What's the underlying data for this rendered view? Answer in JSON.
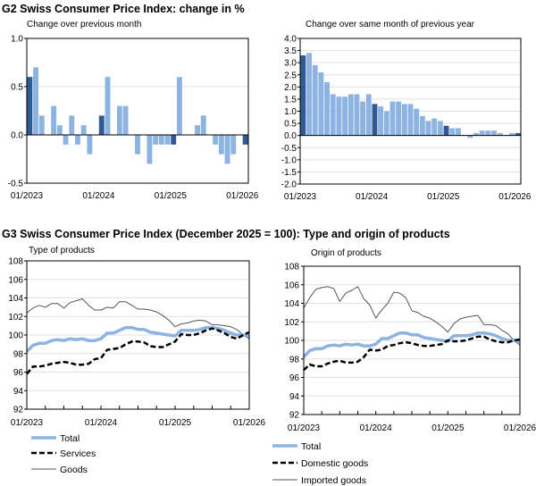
{
  "colors": {
    "bar": "#8db3e2",
    "bar_january": "#2f5a93",
    "total": "#8db3e2",
    "services": "#000000",
    "goods": "#555555",
    "grid": "#e0e0e0"
  },
  "figure_titles": {
    "g2": "G2  Swiss Consumer Price Index: change in %",
    "g3": "G3  Swiss Consumer Price Index (December 2025 = 100): Type and origin of products"
  },
  "chart_data": [
    {
      "type": "bar",
      "title": "Change over previous month",
      "ylim": [
        -0.5,
        1.0
      ],
      "yticks": [
        "1.0",
        "0.5",
        "0.0",
        "-0.5"
      ],
      "xticks": [
        "01/2023",
        "01/2024",
        "01/2025",
        "01/2026"
      ],
      "grid": true,
      "highlight": "January bars darker",
      "categories_range": "01/2023 - 01/2026 monthly",
      "values": [
        0.6,
        0.7,
        0.2,
        0.0,
        0.3,
        0.1,
        -0.1,
        0.2,
        -0.1,
        0.1,
        -0.2,
        0.0,
        0.2,
        0.6,
        0.0,
        0.3,
        0.3,
        0.0,
        -0.2,
        0.0,
        -0.3,
        -0.1,
        -0.1,
        -0.1,
        -0.1,
        0.6,
        0.0,
        0.0,
        0.1,
        0.2,
        0.0,
        -0.1,
        -0.2,
        -0.3,
        -0.2,
        0.0,
        -0.1
      ]
    },
    {
      "type": "bar",
      "title": "Change over same month of previous year",
      "ylim": [
        -2.0,
        4.0
      ],
      "yticks": [
        "4.0",
        "3.5",
        "3.0",
        "2.5",
        "2.0",
        "1.5",
        "1.0",
        "0.5",
        "0.0",
        "-0.5",
        "-1.0",
        "-1.5",
        "-2.0"
      ],
      "xticks": [
        "01/2023",
        "01/2024",
        "01/2025",
        "01/2026"
      ],
      "grid": true,
      "highlight": "January bars darker",
      "categories_range": "01/2023 - 01/2026 monthly",
      "values": [
        3.3,
        3.4,
        2.9,
        2.6,
        2.2,
        1.7,
        1.6,
        1.6,
        1.7,
        1.7,
        1.4,
        1.7,
        1.3,
        1.2,
        1.0,
        1.4,
        1.4,
        1.3,
        1.3,
        1.1,
        0.8,
        0.6,
        0.7,
        0.6,
        0.4,
        0.3,
        0.3,
        0.0,
        -0.1,
        0.1,
        0.2,
        0.2,
        0.2,
        0.1,
        0.0,
        0.1,
        0.1
      ]
    },
    {
      "type": "line",
      "title": "Type of products",
      "ylim": [
        92,
        108
      ],
      "yticks": [
        "108",
        "106",
        "104",
        "102",
        "100",
        "98",
        "96",
        "94",
        "92"
      ],
      "xticks": [
        "01/2023",
        "01/2024",
        "01/2025",
        "01/2026"
      ],
      "grid": true,
      "legend": "bottom",
      "series": [
        {
          "name": "Total",
          "style": "thick-blue",
          "values": [
            98.2,
            98.9,
            99.1,
            99.1,
            99.4,
            99.5,
            99.4,
            99.6,
            99.5,
            99.6,
            99.4,
            99.4,
            99.6,
            100.2,
            100.2,
            100.5,
            100.8,
            100.8,
            100.6,
            100.6,
            100.3,
            100.2,
            100.1,
            100.0,
            99.9,
            100.5,
            100.5,
            100.5,
            100.6,
            100.8,
            100.8,
            100.7,
            100.5,
            100.2,
            100.0,
            100.0,
            99.9
          ]
        },
        {
          "name": "Services",
          "style": "dashed-black",
          "values": [
            95.8,
            96.6,
            96.6,
            96.7,
            96.9,
            97.0,
            97.1,
            97.0,
            96.8,
            96.8,
            96.9,
            97.4,
            97.5,
            98.4,
            98.5,
            98.6,
            99.0,
            99.3,
            99.3,
            99.2,
            98.8,
            98.7,
            98.7,
            99.0,
            99.3,
            100.1,
            100.0,
            100.0,
            100.2,
            100.5,
            100.7,
            100.5,
            100.2,
            99.8,
            99.6,
            100.0,
            100.3
          ]
        },
        {
          "name": "Goods",
          "style": "thin-gray",
          "values": [
            102.4,
            102.9,
            103.2,
            103.0,
            103.4,
            103.4,
            102.9,
            103.5,
            103.7,
            103.9,
            103.2,
            102.7,
            102.7,
            103.0,
            102.9,
            103.6,
            103.6,
            103.2,
            102.8,
            102.8,
            102.7,
            102.5,
            102.1,
            101.6,
            100.9,
            101.2,
            101.3,
            101.5,
            101.6,
            101.5,
            101.1,
            101.1,
            101.0,
            100.9,
            100.6,
            100.0,
            99.6
          ]
        }
      ]
    },
    {
      "type": "line",
      "title": "Origin of products",
      "ylim": [
        92,
        108
      ],
      "yticks": [
        "108",
        "106",
        "104",
        "102",
        "100",
        "98",
        "96",
        "94",
        "92"
      ],
      "xticks": [
        "01/2023",
        "01/2024",
        "01/2025",
        "01/2026"
      ],
      "grid": true,
      "legend": "bottom",
      "series": [
        {
          "name": "Total",
          "style": "thick-blue",
          "values": [
            98.2,
            98.9,
            99.1,
            99.1,
            99.4,
            99.5,
            99.4,
            99.6,
            99.5,
            99.6,
            99.4,
            99.4,
            99.6,
            100.2,
            100.2,
            100.5,
            100.8,
            100.8,
            100.6,
            100.6,
            100.3,
            100.2,
            100.1,
            100.0,
            99.9,
            100.5,
            100.5,
            100.5,
            100.6,
            100.8,
            100.8,
            100.7,
            100.5,
            100.2,
            100.0,
            100.0,
            99.9
          ]
        },
        {
          "name": "Domestic goods",
          "style": "dashed-black",
          "values": [
            96.8,
            97.4,
            97.2,
            97.2,
            97.5,
            97.7,
            97.8,
            97.6,
            97.6,
            97.7,
            98.2,
            99.0,
            98.9,
            99.0,
            99.4,
            99.5,
            99.7,
            99.8,
            99.7,
            99.5,
            99.4,
            99.4,
            99.5,
            99.6,
            100.0,
            99.9,
            99.9,
            100.0,
            100.2,
            100.4,
            100.4,
            100.1,
            99.9,
            99.8,
            99.8,
            100.0,
            100.1
          ]
        },
        {
          "name": "Imported goods",
          "style": "thin-gray",
          "values": [
            103.5,
            104.6,
            105.5,
            105.7,
            105.8,
            105.6,
            104.2,
            105.1,
            105.4,
            105.8,
            104.5,
            103.8,
            102.4,
            103.3,
            104.0,
            105.2,
            105.1,
            104.6,
            103.2,
            103.0,
            102.6,
            102.4,
            102.0,
            101.5,
            100.9,
            101.8,
            102.3,
            102.5,
            102.6,
            102.7,
            101.7,
            101.7,
            101.6,
            101.1,
            100.7,
            100.0,
            99.5
          ]
        }
      ]
    }
  ]
}
